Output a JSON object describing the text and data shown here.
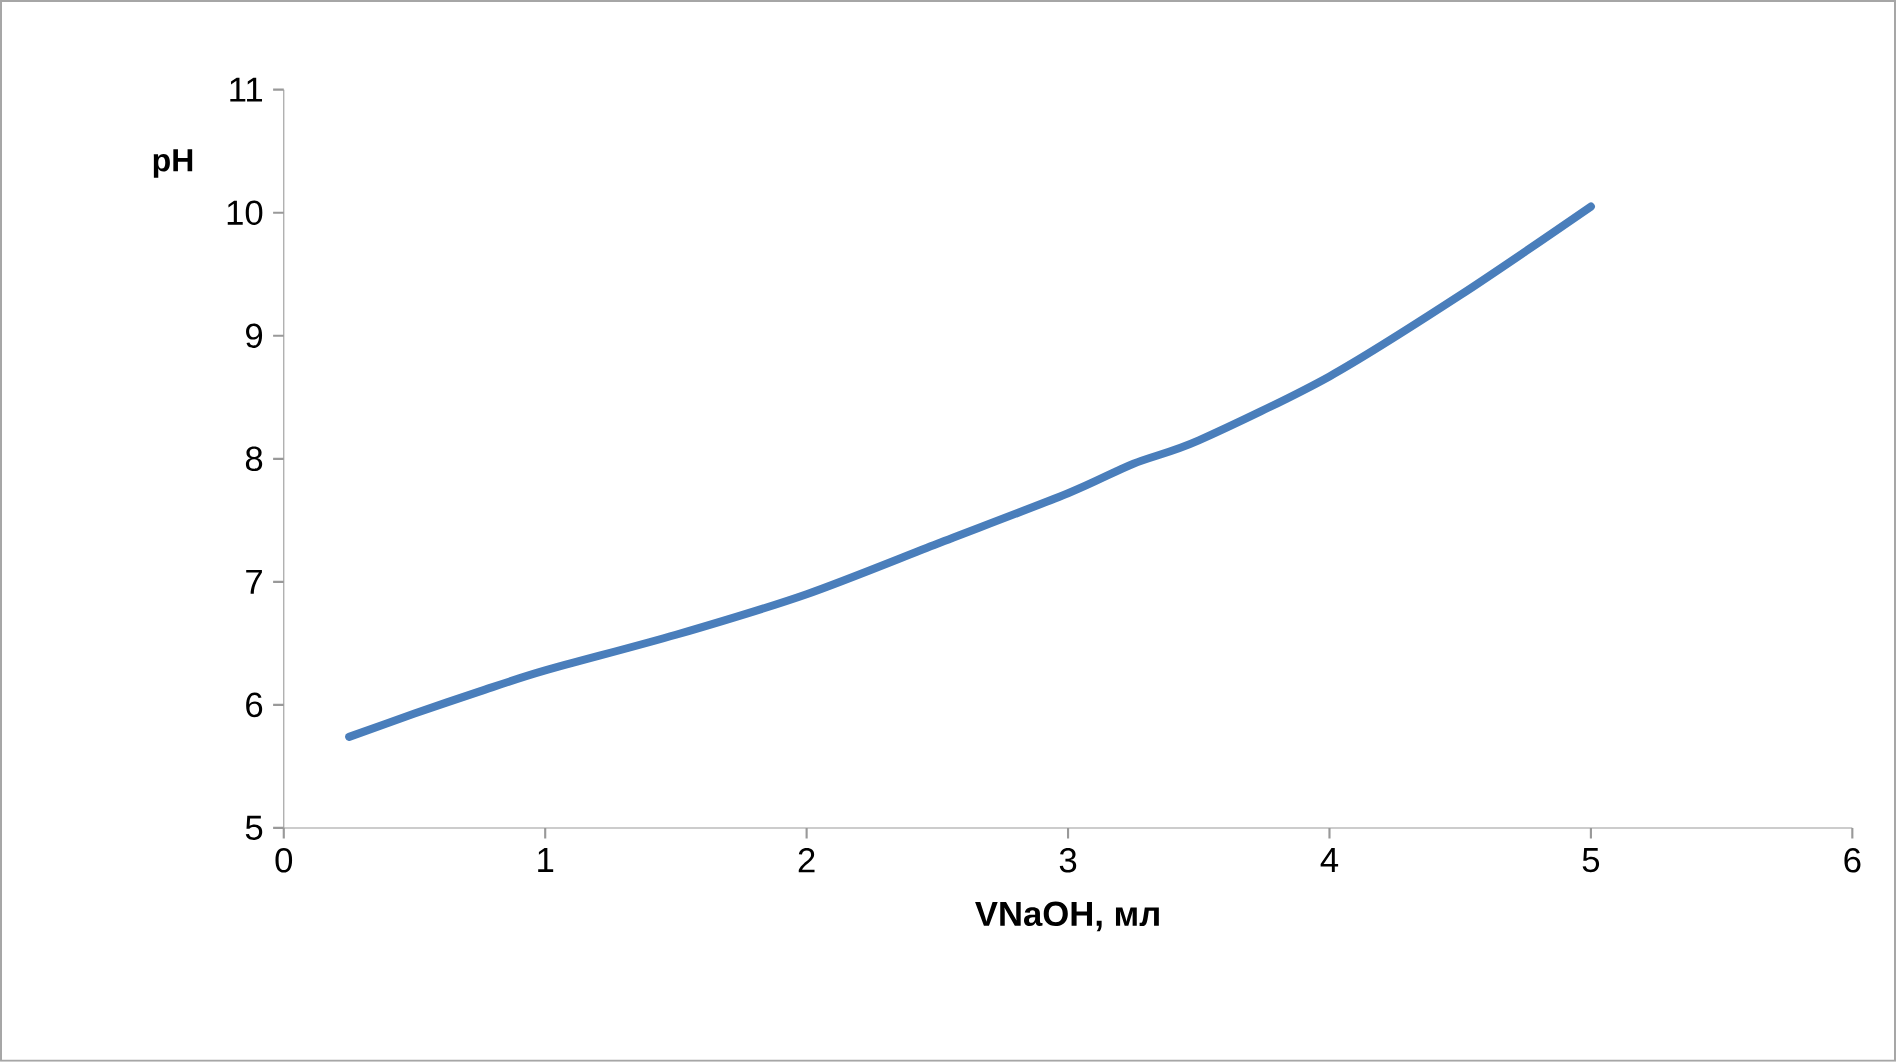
{
  "chart_data": {
    "type": "line",
    "xlabel": "VNaOH, мл",
    "ylabel": "pH",
    "x": [
      0.25,
      0.5,
      0.75,
      1,
      1.5,
      2,
      2.5,
      3,
      3.25,
      3.5,
      4,
      4.5,
      5
    ],
    "values": [
      5.74,
      5.93,
      6.11,
      6.28,
      6.57,
      6.9,
      7.31,
      7.72,
      7.96,
      8.15,
      8.67,
      9.33,
      10.05
    ],
    "color": "#4a7ebb",
    "xlim": [
      0,
      6
    ],
    "ylim": [
      5,
      11
    ],
    "xticks": [
      0,
      1,
      2,
      3,
      4,
      5,
      6
    ],
    "yticks": [
      5,
      6,
      7,
      8,
      9,
      10,
      11
    ],
    "grid": false,
    "marker": "none",
    "line_style": "solid"
  }
}
